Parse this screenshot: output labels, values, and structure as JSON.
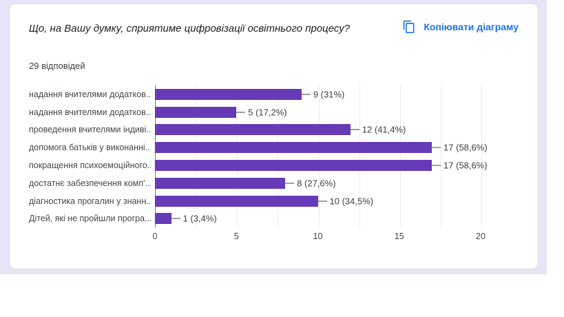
{
  "page": {
    "background_color": "#e8e3f7"
  },
  "card": {
    "title": "Що, на Вашу думку, сприятиме цифровізації освітнього процесу?",
    "responses_count": "29 відповідей",
    "copy_button": {
      "label": "Копіювати діаграму",
      "icon": "copy-icon",
      "color": "#1a73e8"
    }
  },
  "chart_data": {
    "type": "bar",
    "orientation": "horizontal",
    "title": "Що, на Вашу думку, сприятиме цифровізації освітнього процесу?",
    "subtitle": "29 відповідей",
    "categories": [
      "надання вчителями додатков...",
      "надання вчителями додатков...",
      "проведення вчителями індиві...",
      "допомога батьків у виконанні...",
      "покращення психоемоційного...",
      "достатнє забезпечення комп'...",
      "діагностика прогалин у знанн...",
      "Дітей, які не пройшли програ..."
    ],
    "values": [
      9,
      5,
      12,
      17,
      17,
      8,
      10,
      1
    ],
    "value_labels": [
      "9 (31%)",
      "5 (17,2%)",
      "12 (41,4%)",
      "17 (58,6%)",
      "17 (58,6%)",
      "8 (27,6%)",
      "10 (34,5%)",
      "1 (3,4%)"
    ],
    "xlabel": "",
    "ylabel": "",
    "xlim": [
      0,
      20
    ],
    "x_ticks": [
      0,
      5,
      10,
      15,
      20
    ],
    "gridline_step": 2.5,
    "bar_color": "#673ab7",
    "grid": true,
    "legend": false
  }
}
